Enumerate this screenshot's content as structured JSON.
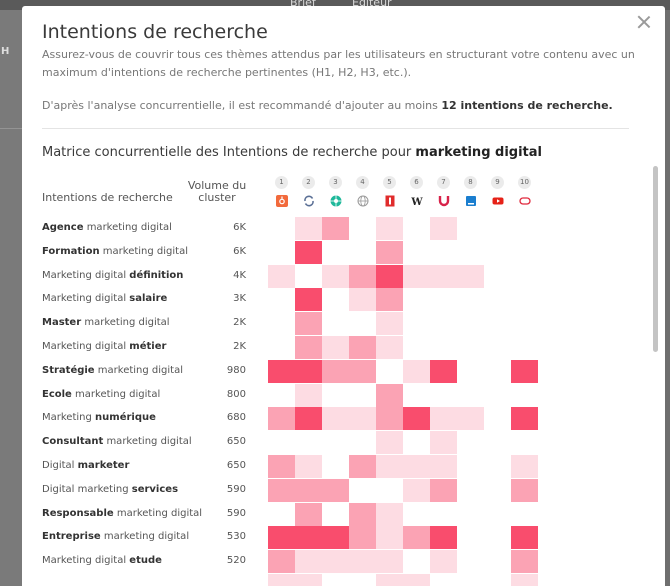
{
  "background": {
    "tabs": [
      "Brief",
      "Éditeur"
    ],
    "left_letter": "H"
  },
  "modal": {
    "title": "Intentions de recherche",
    "description": "Assurez-vous de couvrir tous ces thèmes attendus par les utilisateurs en structurant votre contenu avec un maximum d'intentions de recherche pertinentes (H1, H2, H3, etc.).",
    "recommendation_prefix": "D'après l'analyse concurrentielle, il est recommandé d'ajouter au moins ",
    "recommendation_bold": "12 intentions de recherche.",
    "matrix_title_prefix": "Matrice concurrentielle des Intentions de recherche pour ",
    "matrix_keyword": "marketing digital",
    "col_intent_header": "Intentions de recherche",
    "col_volume_header": "Volume du cluster"
  },
  "competitors": [
    {
      "num": "1",
      "icon": "hubspot-icon",
      "color": "#f26a3c"
    },
    {
      "num": "2",
      "icon": "sync-logo-icon",
      "color": "#5a6f95"
    },
    {
      "num": "3",
      "icon": "green-flower-icon",
      "color": "#1eb89a"
    },
    {
      "num": "4",
      "icon": "globe-icon",
      "color": "#9a9a9a"
    },
    {
      "num": "5",
      "icon": "red-book-icon",
      "color": "#e02c2c"
    },
    {
      "num": "6",
      "icon": "wikipedia-icon",
      "color": "#222222"
    },
    {
      "num": "7",
      "icon": "magnet-icon",
      "color": "#d8234a"
    },
    {
      "num": "8",
      "icon": "blue-bookmark-icon",
      "color": "#1a7ecf"
    },
    {
      "num": "9",
      "icon": "youtube-icon",
      "color": "#e62117"
    },
    {
      "num": "10",
      "icon": "red-capsule-icon",
      "color": "#e0283c"
    }
  ],
  "heat_colors": [
    "#ffffff",
    "#fddce3",
    "#fba3b4",
    "#f94d6d"
  ],
  "rows": [
    {
      "pre": "",
      "bold": "Agence",
      "post": " marketing digital",
      "volume": "6K",
      "cells": [
        0,
        1,
        2,
        0,
        1,
        0,
        1,
        0,
        0,
        0
      ]
    },
    {
      "pre": "",
      "bold": "Formation",
      "post": " marketing digital",
      "volume": "6K",
      "cells": [
        0,
        3,
        0,
        0,
        2,
        0,
        0,
        0,
        0,
        0
      ]
    },
    {
      "pre": "Marketing digital ",
      "bold": "définition",
      "post": "",
      "volume": "4K",
      "cells": [
        1,
        0,
        1,
        2,
        3,
        1,
        1,
        1,
        0,
        0
      ]
    },
    {
      "pre": "Marketing digital ",
      "bold": "salaire",
      "post": "",
      "volume": "3K",
      "cells": [
        0,
        3,
        0,
        1,
        2,
        0,
        0,
        0,
        0,
        0
      ]
    },
    {
      "pre": "",
      "bold": "Master",
      "post": " marketing digital",
      "volume": "2K",
      "cells": [
        0,
        2,
        0,
        0,
        1,
        0,
        0,
        0,
        0,
        0
      ]
    },
    {
      "pre": "Marketing digital ",
      "bold": "métier",
      "post": "",
      "volume": "2K",
      "cells": [
        0,
        2,
        1,
        2,
        1,
        0,
        0,
        0,
        0,
        0
      ]
    },
    {
      "pre": "",
      "bold": "Stratégie",
      "post": " marketing digital",
      "volume": "980",
      "cells": [
        3,
        3,
        2,
        2,
        0,
        1,
        3,
        0,
        0,
        3
      ]
    },
    {
      "pre": "",
      "bold": "Ecole",
      "post": " marketing digital",
      "volume": "800",
      "cells": [
        0,
        1,
        0,
        0,
        2,
        0,
        0,
        0,
        0,
        0
      ]
    },
    {
      "pre": "Marketing ",
      "bold": "numérique",
      "post": "",
      "volume": "680",
      "cells": [
        2,
        3,
        1,
        1,
        2,
        3,
        1,
        1,
        0,
        3
      ]
    },
    {
      "pre": "",
      "bold": "Consultant",
      "post": " marketing digital",
      "volume": "650",
      "cells": [
        0,
        0,
        0,
        0,
        1,
        0,
        1,
        0,
        0,
        0
      ]
    },
    {
      "pre": "Digital ",
      "bold": "marketer",
      "post": "",
      "volume": "650",
      "cells": [
        2,
        1,
        0,
        2,
        1,
        1,
        1,
        0,
        0,
        1
      ]
    },
    {
      "pre": "Digital marketing ",
      "bold": "services",
      "post": "",
      "volume": "590",
      "cells": [
        2,
        2,
        2,
        0,
        0,
        1,
        2,
        0,
        0,
        2
      ]
    },
    {
      "pre": "",
      "bold": "Responsable",
      "post": " marketing digital",
      "volume": "590",
      "cells": [
        0,
        2,
        0,
        2,
        1,
        0,
        0,
        0,
        0,
        0
      ]
    },
    {
      "pre": "",
      "bold": "Entreprise",
      "post": " marketing digital",
      "volume": "530",
      "cells": [
        3,
        3,
        3,
        2,
        1,
        2,
        3,
        0,
        0,
        3
      ]
    },
    {
      "pre": "Marketing digital ",
      "bold": "etude",
      "post": "",
      "volume": "520",
      "cells": [
        2,
        1,
        1,
        1,
        1,
        0,
        1,
        0,
        0,
        2
      ]
    },
    {
      "pre": "",
      "bold": "",
      "post": "",
      "volume": "",
      "cells": [
        1,
        1,
        0,
        0,
        1,
        1,
        0,
        0,
        0,
        1
      ]
    }
  ]
}
